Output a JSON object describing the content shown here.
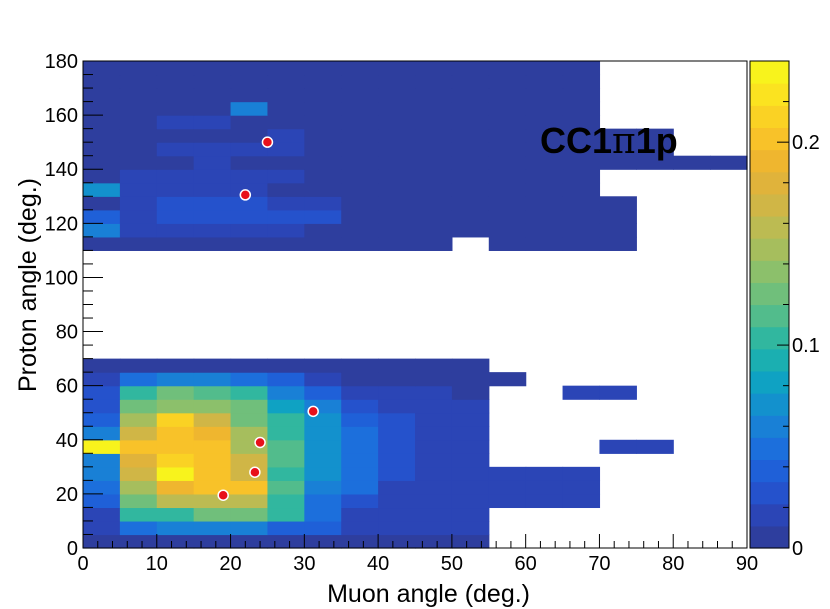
{
  "chart_data": {
    "type": "heatmap",
    "title": "CC1π1p",
    "title_parts": {
      "prefix": "CC1",
      "symbol": "π",
      "suffix": "1p"
    },
    "xlabel": "Muon angle (deg.)",
    "ylabel": "Proton angle (deg.)",
    "xlim": [
      0,
      90
    ],
    "ylim": [
      0,
      180
    ],
    "x_ticks": [
      "0",
      "10",
      "20",
      "30",
      "40",
      "50",
      "60",
      "70",
      "80",
      "90"
    ],
    "y_ticks": [
      "0",
      "20",
      "40",
      "60",
      "80",
      "100",
      "120",
      "140",
      "160",
      "180"
    ],
    "colorbar": {
      "range": [
        0,
        0.24
      ],
      "ticks": [
        "0",
        "0.1",
        "0.2"
      ],
      "palette": [
        "#2e3e9e",
        "#2b45b6",
        "#2552cc",
        "#1f60d8",
        "#1c6fdc",
        "#1980d6",
        "#1391cd",
        "#0fa2c3",
        "#1bafb1",
        "#31b79f",
        "#52bc8c",
        "#70bf7b",
        "#8cc06b",
        "#a6be5d",
        "#bcbb52",
        "#d0b646",
        "#e0b33b",
        "#efb62f",
        "#f8c229",
        "#fad224",
        "#fbe320",
        "#f8f31c"
      ],
      "empty_color": "#ffffff"
    },
    "bin_width_x": 5,
    "bin_width_y": 5,
    "bins": [
      {
        "y": 0,
        "values": [
          0.01,
          0.01,
          0.01,
          0.01,
          0.01,
          0.01,
          0.01,
          0.01,
          0.01,
          0.01,
          0.01
        ]
      },
      {
        "y": 5,
        "values": [
          0.02,
          0.05,
          0.06,
          0.06,
          0.06,
          0.04,
          0.04,
          0.02,
          0.02,
          0.02,
          0.02
        ]
      },
      {
        "y": 10,
        "values": [
          0.02,
          0.1,
          0.1,
          0.12,
          0.12,
          0.1,
          0.05,
          0.02,
          0.02,
          0.02,
          0.02
        ]
      },
      {
        "y": 15,
        "values": [
          0.04,
          0.13,
          0.16,
          0.16,
          0.16,
          0.1,
          0.05,
          0.03,
          0.02,
          0.02,
          0.02,
          0.02,
          0.02,
          0.02
        ]
      },
      {
        "y": 20,
        "values": [
          0.05,
          0.15,
          0.19,
          0.2,
          0.2,
          0.11,
          0.06,
          0.05,
          0.02,
          0.02,
          0.02,
          0.02,
          0.02,
          0.02
        ]
      },
      {
        "y": 25,
        "values": [
          0.06,
          0.17,
          0.24,
          0.2,
          0.17,
          0.1,
          0.07,
          0.05,
          0.03,
          0.02,
          0.02,
          0.02,
          0.02,
          0.02
        ]
      },
      {
        "y": 30,
        "values": [
          0.06,
          0.18,
          0.21,
          0.2,
          0.17,
          0.11,
          0.07,
          0.05,
          0.03,
          0.02,
          0.02
        ]
      },
      {
        "y": 35,
        "values": [
          0.24,
          0.2,
          0.2,
          0.2,
          0.15,
          0.11,
          0.07,
          0.05,
          0.03,
          0.02,
          0.02,
          null,
          null,
          null,
          0.02,
          0.02
        ]
      },
      {
        "y": 40,
        "values": [
          0.06,
          0.17,
          0.2,
          0.19,
          0.15,
          0.1,
          0.07,
          0.05,
          0.03,
          0.02,
          0.02
        ]
      },
      {
        "y": 45,
        "values": [
          0.04,
          0.15,
          0.21,
          0.17,
          0.13,
          0.1,
          0.07,
          0.04,
          0.03,
          0.02,
          0.02
        ]
      },
      {
        "y": 50,
        "values": [
          0.03,
          0.12,
          0.14,
          0.14,
          0.12,
          0.08,
          0.06,
          0.03,
          0.02,
          0.02,
          0.02
        ]
      },
      {
        "y": 55,
        "values": [
          0.03,
          0.1,
          0.12,
          0.11,
          0.1,
          0.06,
          0.04,
          0.02,
          0.02,
          0.02,
          0.01,
          null,
          null,
          0.02,
          0.02
        ]
      },
      {
        "y": 60,
        "values": [
          0.02,
          0.05,
          0.06,
          0.06,
          0.05,
          0.04,
          0.02,
          0.01,
          0.01,
          0.01,
          0.01,
          0.01
        ]
      },
      {
        "y": 65,
        "values": [
          0.01,
          0.01,
          0.01,
          0.01,
          0.01,
          0.01,
          0.01,
          0.01,
          0.01,
          0.01,
          0.01
        ]
      },
      {
        "y": 110,
        "values": [
          0.01,
          0.01,
          0.01,
          0.01,
          0.01,
          0.01,
          0.01,
          0.01,
          0.01,
          0.01,
          null,
          0.01,
          0.01,
          0.01,
          0.01
        ]
      },
      {
        "y": 115,
        "values": [
          0.06,
          0.02,
          0.02,
          0.02,
          0.02,
          0.02,
          0.01,
          0.01,
          0.01,
          0.01,
          0.01,
          0.01,
          0.01,
          0.01,
          0.01
        ]
      },
      {
        "y": 120,
        "values": [
          0.04,
          0.02,
          0.03,
          0.03,
          0.03,
          0.03,
          0.03,
          0.01,
          0.01,
          0.01,
          0.01,
          0.01,
          0.01,
          0.01,
          0.01
        ]
      },
      {
        "y": 125,
        "values": [
          0.01,
          0.02,
          0.03,
          0.03,
          0.03,
          0.02,
          0.02,
          0.01,
          0.01,
          0.01,
          0.01,
          0.01,
          0.01,
          0.01,
          0.01
        ]
      },
      {
        "y": 130,
        "values": [
          0.07,
          0.02,
          0.02,
          0.02,
          0.02,
          0.01,
          0.01,
          0.01,
          0.01,
          0.01,
          0.01,
          0.01,
          0.01,
          0.01
        ]
      },
      {
        "y": 135,
        "values": [
          0.01,
          0.02,
          0.02,
          0.02,
          0.02,
          0.02,
          0.01,
          0.01,
          0.01,
          0.01,
          0.01,
          0.01,
          0.01,
          0.01
        ]
      },
      {
        "y": 140,
        "values": [
          0.01,
          0.01,
          0.01,
          0.02,
          0.01,
          0.01,
          0.01,
          0.01,
          0.01,
          0.01,
          0.01,
          0.01,
          0.01,
          0.01,
          0.01,
          0.01,
          0.01,
          0.01
        ]
      },
      {
        "y": 145,
        "values": [
          0.01,
          0.01,
          0.02,
          0.02,
          0.02,
          0.02,
          0.01,
          0.01,
          0.01,
          0.01,
          0.01,
          0.01,
          0.01,
          0.01,
          0.01,
          0.01
        ]
      },
      {
        "y": 150,
        "values": [
          0.01,
          0.01,
          0.01,
          0.01,
          0.01,
          0.02,
          0.01,
          0.01,
          0.01,
          0.01,
          0.01,
          0.01,
          0.01,
          0.01,
          0.01,
          0.01
        ]
      },
      {
        "y": 155,
        "values": [
          0.01,
          0.01,
          0.02,
          0.02,
          0.01,
          0.01,
          0.01,
          0.01,
          0.01,
          0.01,
          0.01,
          0.01,
          0.01,
          0.01
        ]
      },
      {
        "y": 160,
        "values": [
          0.01,
          0.01,
          0.01,
          0.01,
          0.06,
          0.01,
          0.01,
          0.01,
          0.01,
          0.01,
          0.01,
          0.01,
          0.01,
          0.01
        ]
      },
      {
        "y": 165,
        "values": [
          0.01,
          0.01,
          0.01,
          0.01,
          0.01,
          0.01,
          0.01,
          0.01,
          0.01,
          0.01,
          0.01,
          0.01,
          0.01,
          0.01
        ]
      },
      {
        "y": 170,
        "values": [
          0.01,
          0.01,
          0.01,
          0.01,
          0.01,
          0.01,
          0.01,
          0.01,
          0.01,
          0.01,
          0.01,
          0.01,
          0.01,
          0.01
        ]
      },
      {
        "y": 175,
        "values": [
          0.01,
          0.01,
          0.01,
          0.01,
          0.01,
          0.01,
          0.01,
          0.01,
          0.01,
          0.01,
          0.01,
          0.01,
          0.01,
          0.01
        ]
      }
    ],
    "points": [
      {
        "x": 25,
        "y": 150
      },
      {
        "x": 22,
        "y": 130.5
      },
      {
        "x": 31.2,
        "y": 50.5
      },
      {
        "x": 24,
        "y": 39
      },
      {
        "x": 23.3,
        "y": 28
      },
      {
        "x": 19,
        "y": 19.5
      }
    ],
    "marker_color": "#e8101a"
  }
}
